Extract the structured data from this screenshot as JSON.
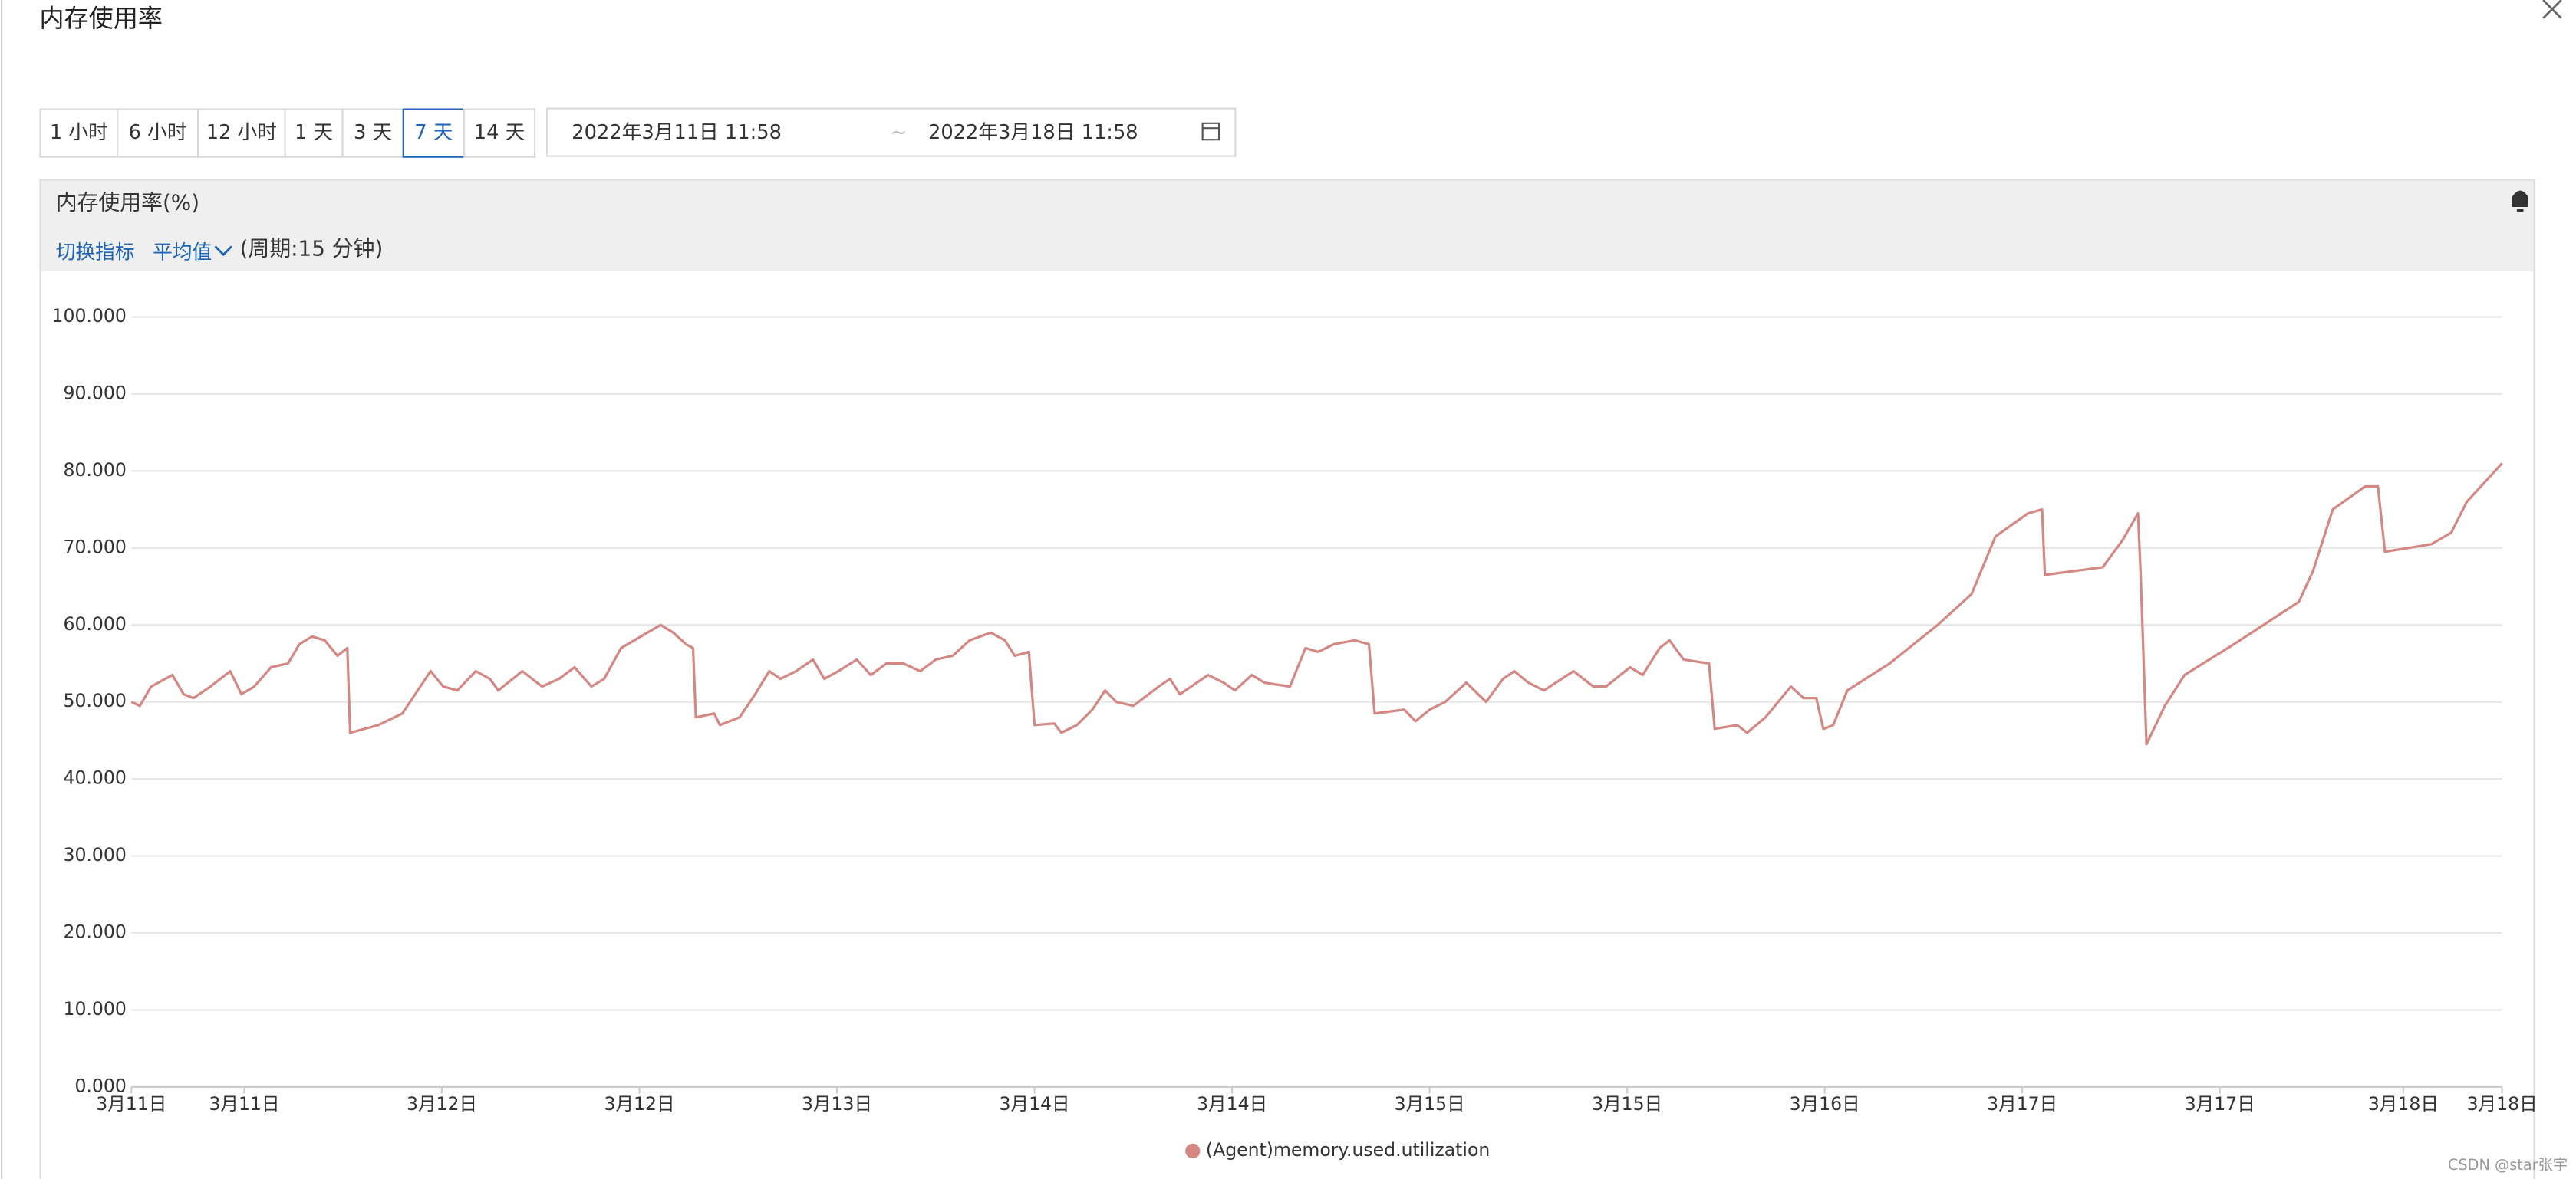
{
  "dialog": {
    "title": "内存使用率",
    "watermark": "CSDN @star张宇"
  },
  "toolbar": {
    "ranges": [
      "1 小时",
      "6 小时",
      "12 小时",
      "1 天",
      "3 天",
      "7 天",
      "14 天"
    ],
    "selected_index": 5,
    "date_start": "2022年3月11日 11:58",
    "date_separator": "~",
    "date_end": "2022年3月18日 11:58"
  },
  "panel": {
    "title": "内存使用率(%)",
    "switch_metric": "切换指标",
    "aggregation": "平均值",
    "period": "(周期:15 分钟)"
  },
  "chart_data": {
    "type": "line",
    "x": [
      0,
      0.6,
      1.4,
      2.9,
      3.7,
      4.4,
      5.6,
      7.0,
      7.8,
      8.7,
      9.9,
      11.1,
      11.9,
      12.8,
      13.7,
      14.6,
      15.3,
      15.5,
      17.5,
      19.2,
      21.2,
      22.1,
      23.1,
      24.4,
      25.4,
      26.0,
      27.7,
      29.1,
      30.3,
      31.4,
      32.6,
      33.5,
      34.7,
      36.1,
      37.5,
      38.4,
      39.3,
      39.8,
      40.0,
      41.3,
      41.7,
      43.1,
      44.2,
      45.2,
      46.0,
      47.1,
      48.3,
      49.1,
      50.1,
      51.4,
      52.4,
      53.5,
      54.7,
      55.9,
      57.0,
      58.2,
      59.4,
      60.9,
      61.9,
      62.6,
      63.6,
      64.0,
      65.4,
      65.9,
      67.0,
      68.1,
      69.0,
      69.8,
      71.0,
      72.8,
      73.6,
      74.3,
      76.3,
      77.4,
      78.2,
      79.4,
      80.3,
      82.1,
      83.2,
      84.1,
      85.2,
      86.7,
      87.7,
      88.1,
      90.2,
      91.0,
      92.0,
      93.1,
      94.6,
      96.0,
      97.2,
      98.0,
      99.0,
      100.1,
      102.2,
      103.6,
      104.5,
      106.2,
      107.1,
      108.3,
      109.0,
      110.0,
      111.8,
      112.2,
      113.8,
      114.5,
      115.8,
      117.6,
      118.5,
      119.4,
      119.9,
      120.6,
      121.6,
      124.6,
      128.0,
      130.4,
      132.1,
      134.4,
      135.4,
      135.6,
      139.7,
      141.1,
      142.2,
      142.4,
      142.8,
      144.1,
      145.5,
      149.0,
      153.6,
      154.6,
      156.0,
      158.3,
      159.2,
      159.7,
      163.0,
      164.4,
      165.5,
      168.0
    ],
    "series": [
      {
        "name": "(Agent)memory.used.utilization",
        "color": "#d48783",
        "values": [
          50,
          49.5,
          52,
          53.5,
          51,
          50.5,
          52,
          54,
          51,
          52,
          54.5,
          55,
          57.5,
          58.5,
          58,
          56,
          57,
          46,
          47,
          48.5,
          54,
          52,
          51.5,
          54,
          53,
          51.5,
          54,
          52,
          53,
          54.5,
          52,
          53,
          57,
          58.5,
          60,
          59,
          57.5,
          57,
          48,
          48.5,
          47,
          48,
          51,
          54,
          53,
          54,
          55.5,
          53,
          54,
          55.5,
          53.5,
          55,
          55,
          54,
          55.5,
          56,
          58,
          59,
          58,
          56,
          56.5,
          47,
          47.2,
          46,
          47,
          49,
          51.5,
          50,
          49.5,
          52,
          53,
          51,
          53.5,
          52.5,
          51.5,
          53.5,
          52.5,
          52,
          57,
          56.5,
          57.5,
          58,
          57.5,
          48.5,
          49,
          47.5,
          49,
          50,
          52.5,
          50,
          53,
          54,
          52.5,
          51.5,
          54,
          52,
          52,
          54.5,
          53.5,
          57,
          58,
          55.5,
          55,
          46.5,
          47,
          46,
          48,
          52,
          50.5,
          50.5,
          46.5,
          47,
          51.5,
          55,
          60,
          64,
          71.5,
          74.5,
          75,
          66.5,
          67.5,
          71,
          74.5,
          66,
          44.5,
          49.5,
          53.5,
          57.5,
          63,
          67,
          75,
          78,
          78,
          69.5,
          70.5,
          72,
          76,
          81
        ]
      }
    ],
    "xlim": [
      0,
      168
    ],
    "xticks": [
      {
        "value": 0,
        "label": "3月11日"
      },
      {
        "value": 8,
        "label": "3月11日"
      },
      {
        "value": 22,
        "label": "3月12日"
      },
      {
        "value": 36,
        "label": "3月12日"
      },
      {
        "value": 50,
        "label": "3月13日"
      },
      {
        "value": 64,
        "label": "3月14日"
      },
      {
        "value": 78,
        "label": "3月14日"
      },
      {
        "value": 92,
        "label": "3月15日"
      },
      {
        "value": 106,
        "label": "3月15日"
      },
      {
        "value": 120,
        "label": "3月16日"
      },
      {
        "value": 134,
        "label": "3月17日"
      },
      {
        "value": 148,
        "label": "3月17日"
      },
      {
        "value": 161,
        "label": "3月18日"
      },
      {
        "value": 168,
        "label": "3月18日"
      }
    ],
    "ylim": [
      0,
      100
    ],
    "yticks": [
      {
        "value": 0,
        "label": "0.000"
      },
      {
        "value": 10,
        "label": "10.000"
      },
      {
        "value": 20,
        "label": "20.000"
      },
      {
        "value": 30,
        "label": "30.000"
      },
      {
        "value": 40,
        "label": "40.000"
      },
      {
        "value": 50,
        "label": "50.000"
      },
      {
        "value": 60,
        "label": "60.000"
      },
      {
        "value": 70,
        "label": "70.000"
      },
      {
        "value": 80,
        "label": "80.000"
      },
      {
        "value": 90,
        "label": "90.000"
      },
      {
        "value": 100,
        "label": "100.000"
      }
    ],
    "grid": true,
    "legend": "bottom"
  }
}
